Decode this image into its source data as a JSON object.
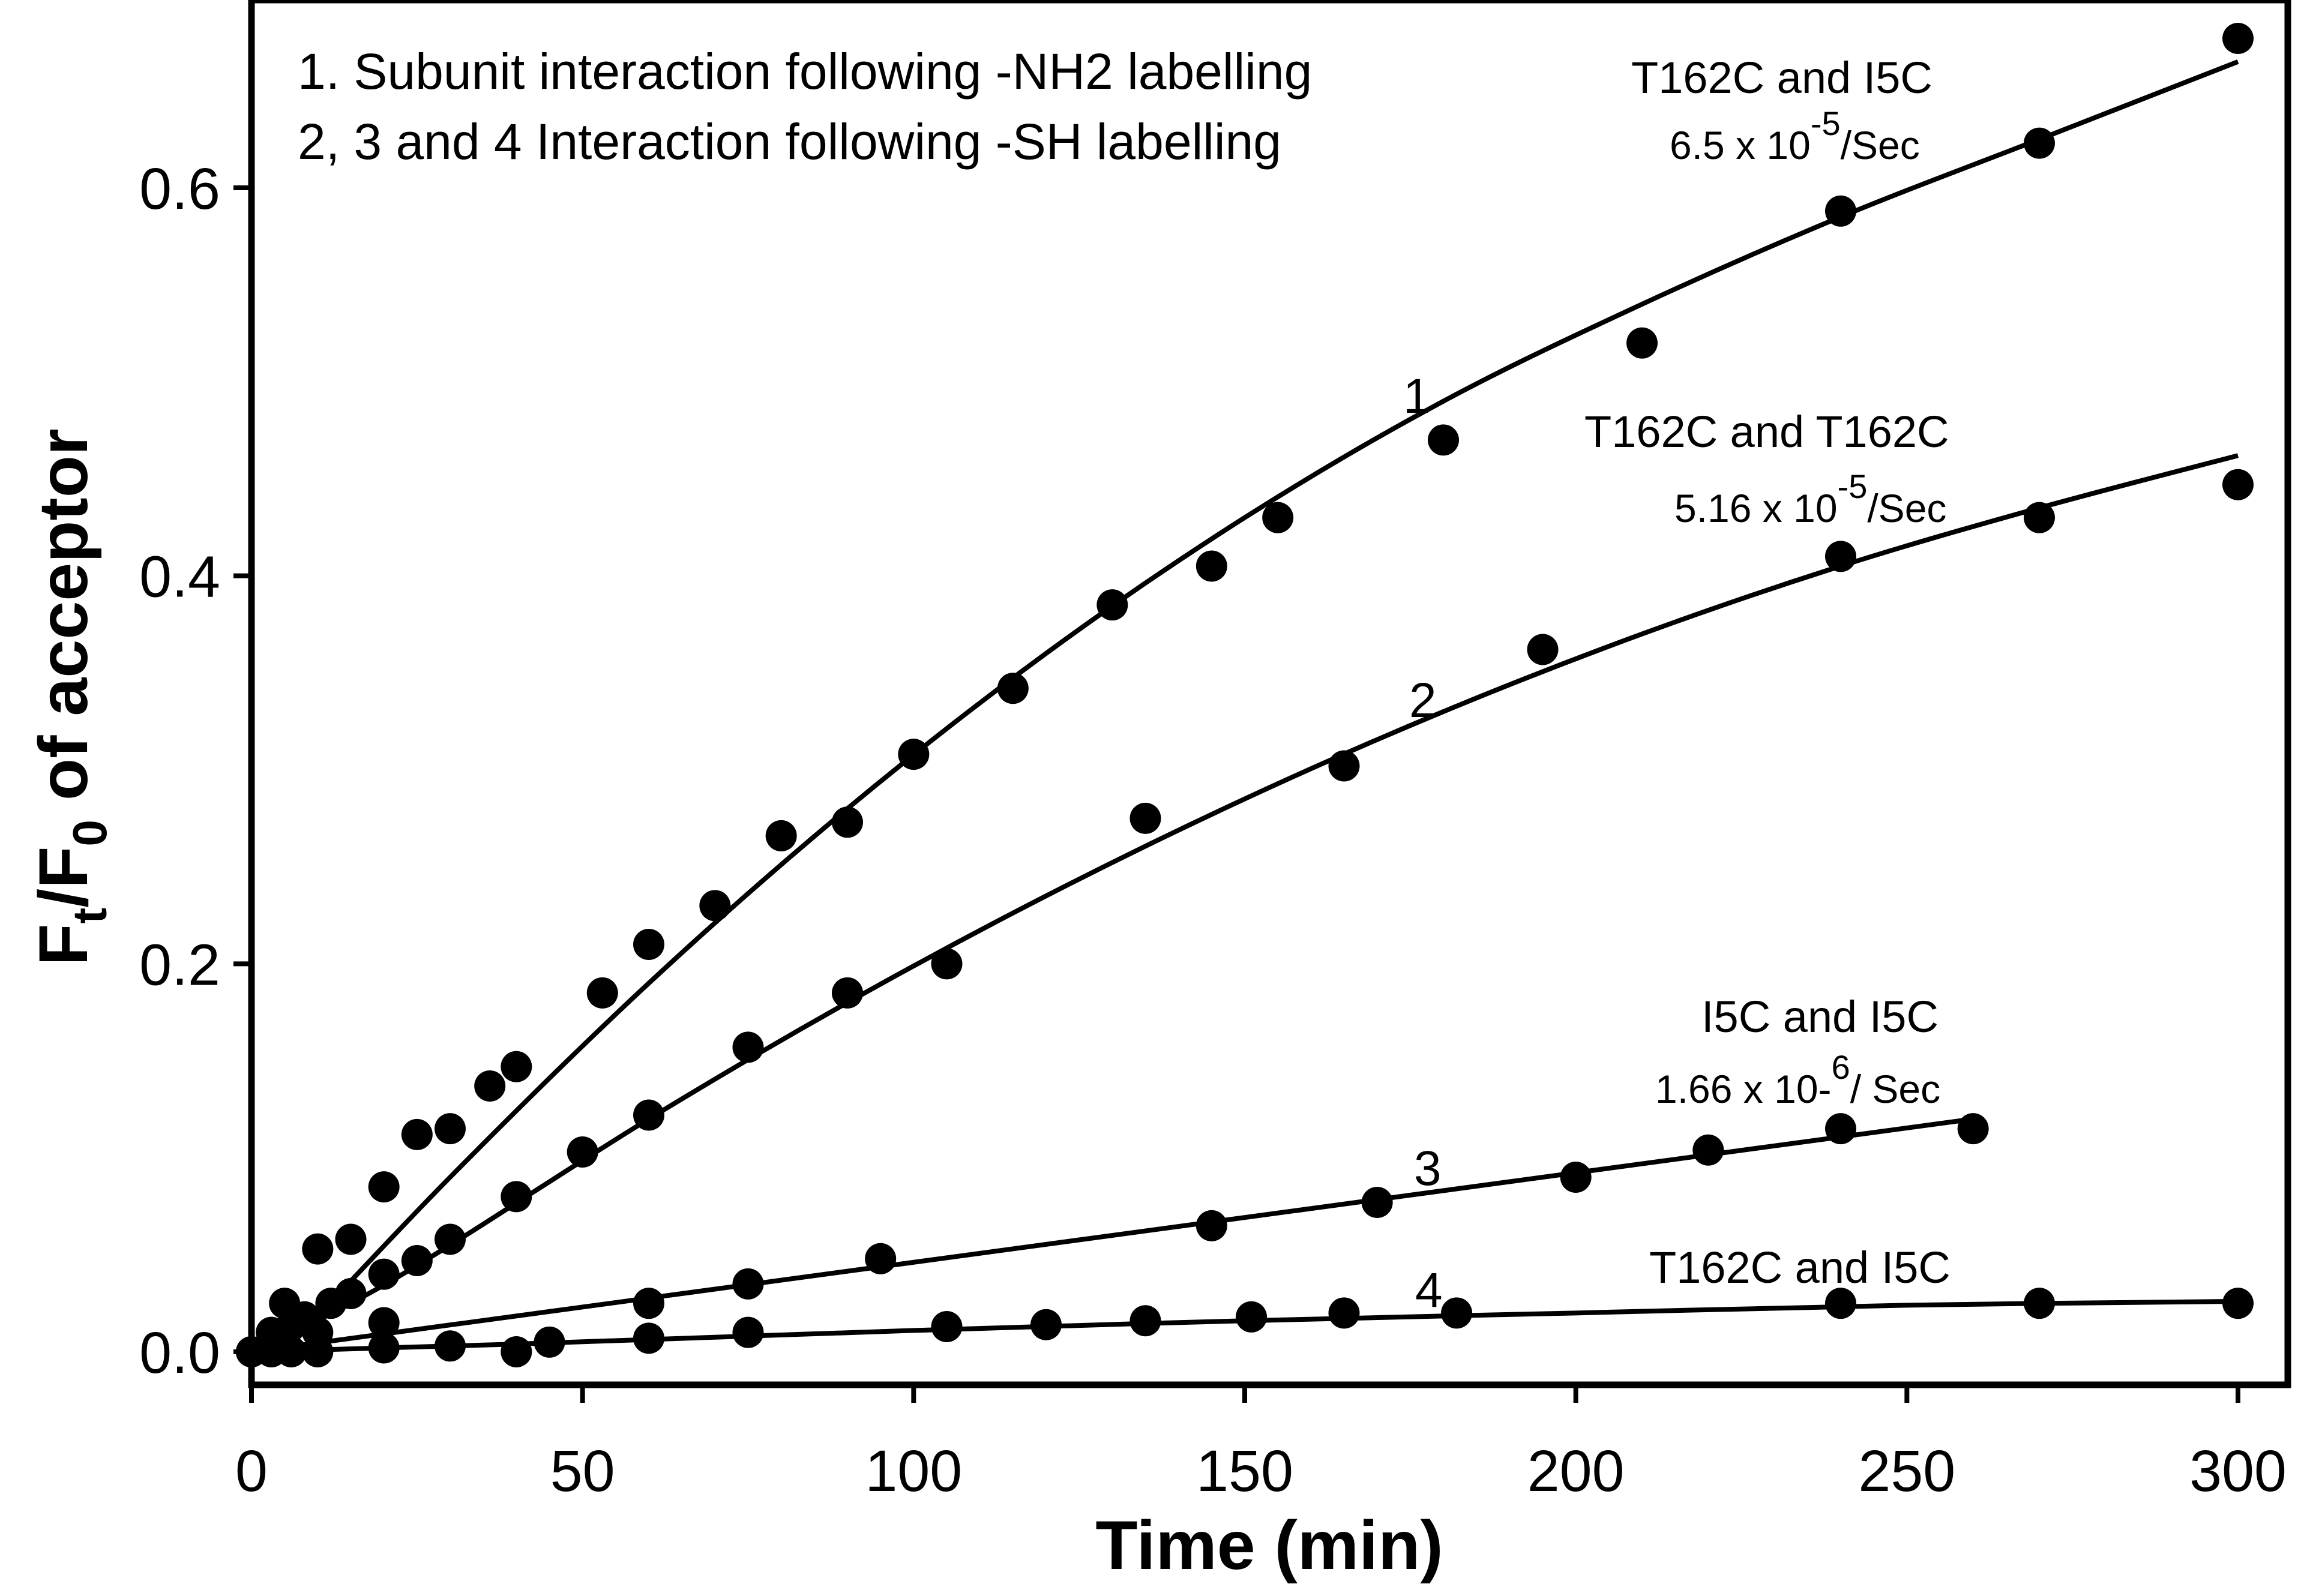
{
  "chart_data": {
    "type": "scatter",
    "xlabel": "Time (min)",
    "ylabel": {
      "main": "F",
      "sub1": "t",
      "slash": "/F",
      "sub2": "0",
      "rest": " of acceptor"
    },
    "xlim": [
      0,
      300
    ],
    "ylim": [
      -0.02,
      0.7
    ],
    "xticks": [
      0,
      50,
      100,
      150,
      200,
      250,
      300
    ],
    "yticks": [
      0.0,
      0.2,
      0.4,
      0.6
    ],
    "xtick_labels": [
      "0",
      "50",
      "100",
      "150",
      "200",
      "250",
      "300"
    ],
    "ytick_labels": [
      "0.0",
      "0.2",
      "0.4",
      "0.6"
    ],
    "grid": false,
    "legend_text": [
      "1. Subunit interaction following -NH2 labelling",
      "2, 3 and 4 Interaction following -SH labelling"
    ],
    "series": [
      {
        "label": "1",
        "annotation_title": "T162C and I5C",
        "rate": {
          "prefix": "6.5 x 10",
          "exp": "-5",
          "suffix": "/Sec"
        },
        "points": [
          [
            0,
            0.0
          ],
          [
            3,
            0.01
          ],
          [
            5,
            0.025
          ],
          [
            10,
            0.053
          ],
          [
            15,
            0.058
          ],
          [
            20,
            0.085
          ],
          [
            25,
            0.112
          ],
          [
            30,
            0.115
          ],
          [
            36,
            0.137
          ],
          [
            40,
            0.147
          ],
          [
            53,
            0.185
          ],
          [
            60,
            0.21
          ],
          [
            70,
            0.23
          ],
          [
            80,
            0.266
          ],
          [
            90,
            0.273
          ],
          [
            100,
            0.308
          ],
          [
            115,
            0.342
          ],
          [
            130,
            0.385
          ],
          [
            145,
            0.405
          ],
          [
            155,
            0.43
          ],
          [
            180,
            0.47
          ],
          [
            210,
            0.52
          ],
          [
            240,
            0.588
          ],
          [
            270,
            0.623
          ],
          [
            300,
            0.677
          ]
        ],
        "fit": [
          [
            5,
            0.0
          ],
          [
            30,
            0.09
          ],
          [
            60,
            0.19
          ],
          [
            90,
            0.28
          ],
          [
            120,
            0.36
          ],
          [
            150,
            0.43
          ],
          [
            180,
            0.49
          ],
          [
            210,
            0.54
          ],
          [
            240,
            0.585
          ],
          [
            270,
            0.625
          ],
          [
            300,
            0.665
          ]
        ]
      },
      {
        "label": "2",
        "annotation_title": "T162C and T162C",
        "rate": {
          "prefix": "5.16 x 10",
          "exp": "-5",
          "suffix": "/Sec"
        },
        "points": [
          [
            0,
            0.0
          ],
          [
            3,
            0.005
          ],
          [
            5,
            0.01
          ],
          [
            8,
            0.018
          ],
          [
            12,
            0.025
          ],
          [
            15,
            0.03
          ],
          [
            20,
            0.04
          ],
          [
            25,
            0.047
          ],
          [
            30,
            0.058
          ],
          [
            40,
            0.08
          ],
          [
            50,
            0.103
          ],
          [
            60,
            0.122
          ],
          [
            75,
            0.157
          ],
          [
            90,
            0.185
          ],
          [
            105,
            0.2
          ],
          [
            135,
            0.275
          ],
          [
            165,
            0.302
          ],
          [
            195,
            0.362
          ],
          [
            240,
            0.41
          ],
          [
            270,
            0.43
          ],
          [
            300,
            0.447
          ]
        ],
        "fit": [
          [
            0,
            0.0
          ],
          [
            15,
            0.025
          ],
          [
            30,
            0.055
          ],
          [
            60,
            0.12
          ],
          [
            90,
            0.18
          ],
          [
            120,
            0.235
          ],
          [
            150,
            0.285
          ],
          [
            180,
            0.33
          ],
          [
            210,
            0.37
          ],
          [
            240,
            0.405
          ],
          [
            270,
            0.435
          ],
          [
            300,
            0.462
          ]
        ]
      },
      {
        "label": "3",
        "annotation_title": "I5C and I5C",
        "rate": {
          "prefix": "1.66 x 10-",
          "exp": "6",
          "suffix": "/ Sec"
        },
        "points": [
          [
            0,
            0.0
          ],
          [
            5,
            0.005
          ],
          [
            10,
            0.01
          ],
          [
            20,
            0.015
          ],
          [
            60,
            0.025
          ],
          [
            75,
            0.035
          ],
          [
            95,
            0.048
          ],
          [
            145,
            0.065
          ],
          [
            170,
            0.077
          ],
          [
            200,
            0.09
          ],
          [
            220,
            0.104
          ],
          [
            240,
            0.115
          ],
          [
            260,
            0.115
          ]
        ],
        "fit": [
          [
            0,
            0.0
          ],
          [
            260,
            0.12
          ]
        ]
      },
      {
        "label": "4",
        "annotation_title": "T162C and I5C",
        "rate": null,
        "points": [
          [
            0,
            0.0
          ],
          [
            3,
            0.0
          ],
          [
            6,
            0.0
          ],
          [
            10,
            0.0
          ],
          [
            20,
            0.002
          ],
          [
            30,
            0.003
          ],
          [
            40,
            0.0
          ],
          [
            45,
            0.005
          ],
          [
            60,
            0.007
          ],
          [
            75,
            0.01
          ],
          [
            105,
            0.013
          ],
          [
            120,
            0.014
          ],
          [
            135,
            0.016
          ],
          [
            151,
            0.018
          ],
          [
            165,
            0.02
          ],
          [
            182,
            0.02
          ],
          [
            240,
            0.025
          ],
          [
            270,
            0.025
          ],
          [
            300,
            0.025
          ]
        ],
        "fit": [
          [
            0,
            0.0
          ],
          [
            40,
            0.004
          ],
          [
            100,
            0.011
          ],
          [
            150,
            0.016
          ],
          [
            200,
            0.02
          ],
          [
            250,
            0.024
          ],
          [
            300,
            0.026
          ]
        ]
      }
    ]
  }
}
